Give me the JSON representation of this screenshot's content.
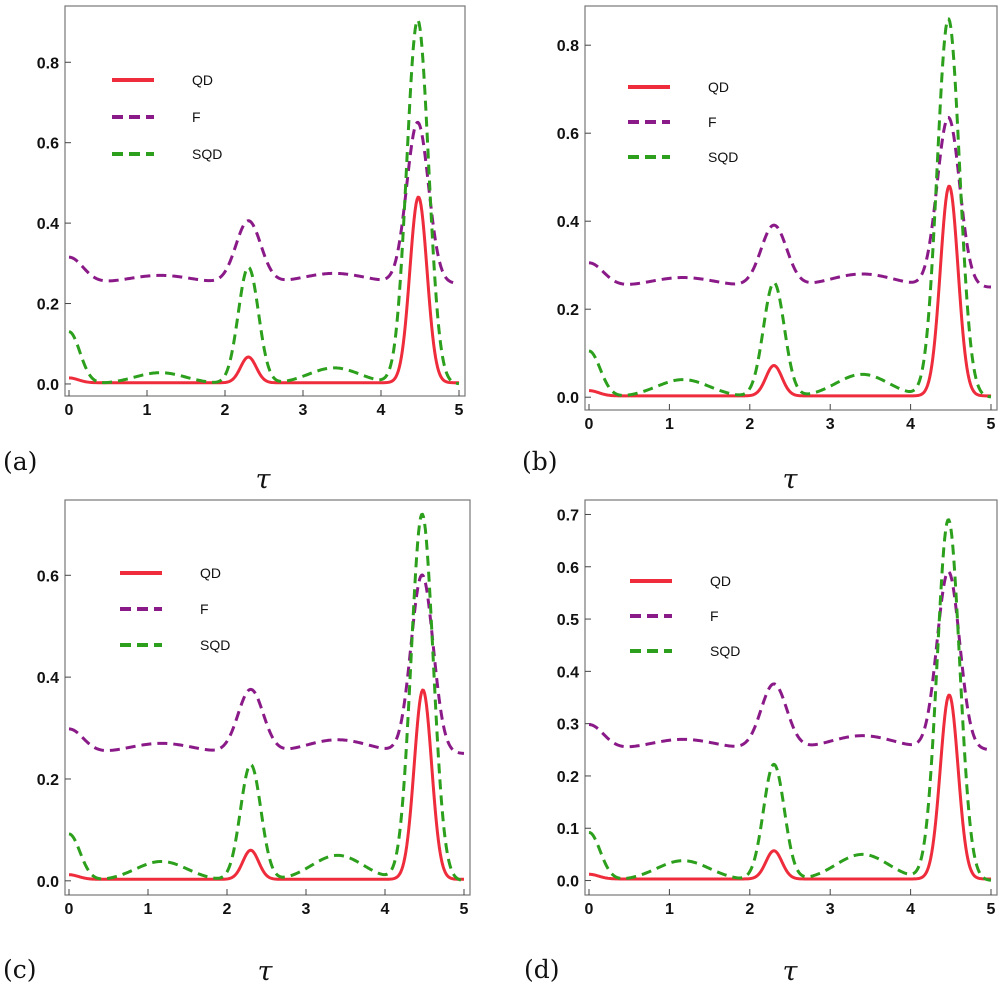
{
  "chart_data": [
    {
      "type": "line",
      "panel_label": "(a)",
      "xlabel": "τ",
      "xlim": [
        0,
        5
      ],
      "ylim": [
        -0.02,
        0.93
      ],
      "xticks": [
        "0",
        "1",
        "2",
        "3",
        "4",
        "5"
      ],
      "yticks": [
        "0.0",
        "0.2",
        "0.4",
        "0.6",
        "0.8"
      ],
      "legend_position": "top-left",
      "legend": [
        "QD",
        "F",
        "SQD"
      ],
      "series": [
        {
          "name": "QD",
          "style": "solid",
          "color": "#ee2c3c",
          "base": 0.003,
          "peaks": [
            [
              0,
              0.015,
              0.12
            ],
            [
              2.3,
              0.067,
              0.1
            ],
            [
              4.48,
              0.465,
              0.11
            ]
          ],
          "bumps": []
        },
        {
          "name": "F",
          "style": "dashed",
          "color": "#8b1a89",
          "base": 0.25,
          "peaks": [
            [
              0,
              0.315,
              0.18
            ],
            [
              2.3,
              0.405,
              0.16
            ],
            [
              4.47,
              0.65,
              0.14
            ]
          ],
          "bumps": [
            [
              1.17,
              0.27,
              0.4
            ],
            [
              3.4,
              0.275,
              0.4
            ]
          ]
        },
        {
          "name": "SQD",
          "style": "dashed",
          "color": "#2ca01c",
          "base": 0.0,
          "peaks": [
            [
              0,
              0.13,
              0.14
            ],
            [
              2.3,
              0.29,
              0.13
            ],
            [
              4.47,
              0.905,
              0.14
            ]
          ],
          "bumps": [
            [
              1.17,
              0.028,
              0.33
            ],
            [
              3.4,
              0.04,
              0.33
            ]
          ]
        }
      ]
    },
    {
      "type": "line",
      "panel_label": "(b)",
      "xlabel": "τ",
      "xlim": [
        0,
        5
      ],
      "ylim": [
        -0.02,
        0.88
      ],
      "xticks": [
        "0",
        "1",
        "2",
        "3",
        "4",
        "5"
      ],
      "yticks": [
        "0.0",
        "0.2",
        "0.4",
        "0.6",
        "0.8"
      ],
      "legend_position": "top-left",
      "legend": [
        "QD",
        "F",
        "SQD"
      ],
      "series": [
        {
          "name": "QD",
          "style": "solid",
          "color": "#ee2c3c",
          "base": 0.003,
          "peaks": [
            [
              0,
              0.015,
              0.12
            ],
            [
              2.3,
              0.072,
              0.1
            ],
            [
              4.48,
              0.48,
              0.11
            ]
          ],
          "bumps": []
        },
        {
          "name": "F",
          "style": "dashed",
          "color": "#8b1a89",
          "base": 0.25,
          "peaks": [
            [
              0,
              0.305,
              0.18
            ],
            [
              2.3,
              0.39,
              0.16
            ],
            [
              4.47,
              0.635,
              0.14
            ]
          ],
          "bumps": [
            [
              1.17,
              0.272,
              0.4
            ],
            [
              3.4,
              0.28,
              0.4
            ]
          ]
        },
        {
          "name": "SQD",
          "style": "dashed",
          "color": "#2ca01c",
          "base": 0.0,
          "peaks": [
            [
              0,
              0.105,
              0.14
            ],
            [
              2.3,
              0.26,
              0.13
            ],
            [
              4.47,
              0.86,
              0.14
            ]
          ],
          "bumps": [
            [
              1.17,
              0.04,
              0.33
            ],
            [
              3.4,
              0.052,
              0.33
            ]
          ]
        }
      ]
    },
    {
      "type": "line",
      "panel_label": "(c)",
      "xlabel": "τ",
      "xlim": [
        0,
        5
      ],
      "ylim": [
        -0.02,
        0.74
      ],
      "xticks": [
        "0",
        "1",
        "2",
        "3",
        "4",
        "5"
      ],
      "yticks": [
        "0.0",
        "0.2",
        "0.4",
        "0.6"
      ],
      "legend_position": "top-left",
      "legend": [
        "QD",
        "F",
        "SQD"
      ],
      "series": [
        {
          "name": "QD",
          "style": "solid",
          "color": "#ee2c3c",
          "base": 0.003,
          "peaks": [
            [
              0,
              0.012,
              0.12
            ],
            [
              2.3,
              0.06,
              0.1
            ],
            [
              4.48,
              0.375,
              0.11
            ]
          ],
          "bumps": []
        },
        {
          "name": "F",
          "style": "dashed",
          "color": "#8b1a89",
          "base": 0.25,
          "peaks": [
            [
              0,
              0.298,
              0.18
            ],
            [
              2.3,
              0.375,
              0.16
            ],
            [
              4.47,
              0.6,
              0.14
            ]
          ],
          "bumps": [
            [
              1.17,
              0.27,
              0.4
            ],
            [
              3.4,
              0.277,
              0.4
            ]
          ]
        },
        {
          "name": "SQD",
          "style": "dashed",
          "color": "#2ca01c",
          "base": 0.0,
          "peaks": [
            [
              0,
              0.092,
              0.14
            ],
            [
              2.3,
              0.228,
              0.13
            ],
            [
              4.47,
              0.72,
              0.14
            ]
          ],
          "bumps": [
            [
              1.17,
              0.038,
              0.33
            ],
            [
              3.4,
              0.05,
              0.33
            ]
          ]
        }
      ]
    },
    {
      "type": "line",
      "panel_label": "(d)",
      "xlabel": "τ",
      "xlim": [
        0,
        5
      ],
      "ylim": [
        -0.02,
        0.72
      ],
      "xticks": [
        "0",
        "1",
        "2",
        "3",
        "4",
        "5"
      ],
      "yticks": [
        "0.0",
        "0.1",
        "0.2",
        "0.3",
        "0.4",
        "0.5",
        "0.6",
        "0.7"
      ],
      "legend_position": "top-left",
      "legend": [
        "QD",
        "F",
        "SQD"
      ],
      "series": [
        {
          "name": "QD",
          "style": "solid",
          "color": "#ee2c3c",
          "base": 0.003,
          "peaks": [
            [
              0,
              0.012,
              0.12
            ],
            [
              2.3,
              0.057,
              0.1
            ],
            [
              4.48,
              0.355,
              0.11
            ]
          ],
          "bumps": []
        },
        {
          "name": "F",
          "style": "dashed",
          "color": "#8b1a89",
          "base": 0.25,
          "peaks": [
            [
              0,
              0.298,
              0.18
            ],
            [
              2.3,
              0.375,
              0.16
            ],
            [
              4.47,
              0.59,
              0.14
            ]
          ],
          "bumps": [
            [
              1.17,
              0.27,
              0.4
            ],
            [
              3.4,
              0.277,
              0.4
            ]
          ]
        },
        {
          "name": "SQD",
          "style": "dashed",
          "color": "#2ca01c",
          "base": 0.0,
          "peaks": [
            [
              0,
              0.092,
              0.14
            ],
            [
              2.3,
              0.222,
              0.13
            ],
            [
              4.47,
              0.69,
              0.14
            ]
          ],
          "bumps": [
            [
              1.17,
              0.038,
              0.33
            ],
            [
              3.4,
              0.05,
              0.33
            ]
          ]
        }
      ]
    }
  ]
}
